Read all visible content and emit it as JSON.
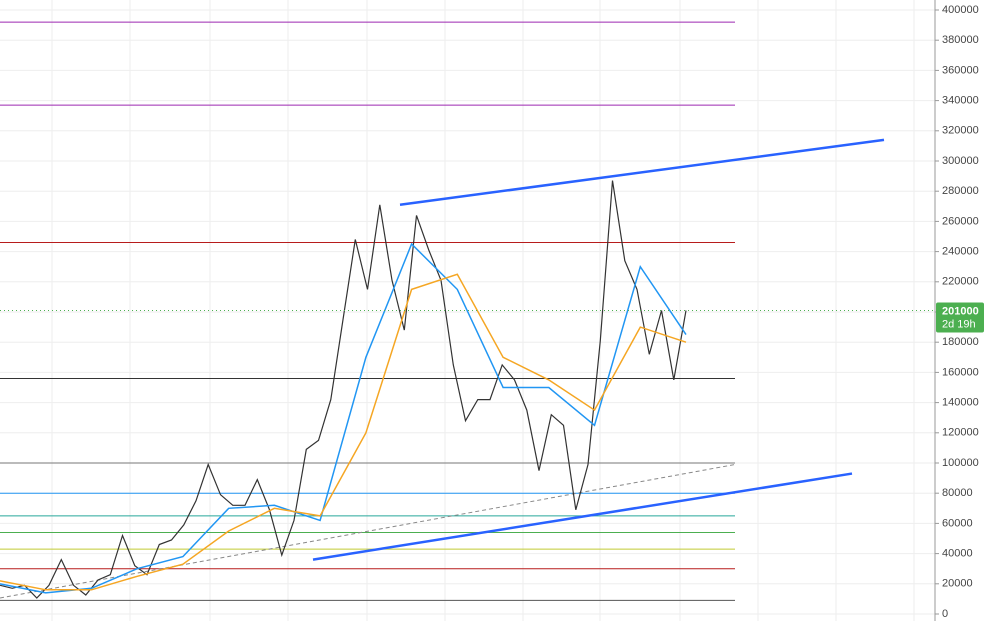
{
  "chart_data": {
    "type": "line",
    "ylim": [
      0,
      400000
    ],
    "yticks": [
      0,
      20000,
      40000,
      60000,
      80000,
      100000,
      120000,
      140000,
      160000,
      180000,
      200000,
      220000,
      240000,
      260000,
      280000,
      300000,
      320000,
      340000,
      360000,
      380000,
      400000
    ],
    "grid": true,
    "series": [
      {
        "name": "Price",
        "color": "#333333",
        "values": [
          19000,
          17000,
          19000,
          10600,
          19000,
          36000,
          19000,
          12600,
          22500,
          26000,
          52000,
          32000,
          26000,
          46000,
          49000,
          59000,
          75000,
          99000,
          79000,
          72000,
          72000,
          89000,
          69000,
          39000,
          62000,
          109000,
          115000,
          142000,
          195000,
          248000,
          215000,
          271000,
          221000,
          188000,
          264000,
          241000,
          221000,
          165000,
          128000,
          142000,
          142000,
          165000,
          155000,
          135000,
          95000,
          132000,
          125000,
          69000,
          99000,
          181000,
          287000,
          234000,
          215000,
          172000,
          201000,
          155000,
          201000
        ]
      },
      {
        "name": "MA fast",
        "color": "#2196f3",
        "values": [
          20000,
          14000,
          17000,
          30000,
          38000,
          70000,
          72000,
          62000,
          170000,
          245000,
          215000,
          150000,
          150000,
          125000,
          230000,
          185000
        ]
      },
      {
        "name": "MA slow",
        "color": "#f5a623",
        "values": [
          22000,
          16000,
          16000,
          25000,
          33000,
          55000,
          70000,
          65000,
          120000,
          215000,
          225000,
          170000,
          155000,
          135000,
          190000,
          180000
        ]
      }
    ],
    "levels": [
      {
        "value": 392000,
        "color": "#9c27b0"
      },
      {
        "value": 337000,
        "color": "#9c27b0"
      },
      {
        "value": 246000,
        "color": "#b71c1c"
      },
      {
        "value": 156000,
        "color": "#333333"
      },
      {
        "value": 100000,
        "color": "#777777"
      },
      {
        "value": 80000,
        "color": "#2196f3"
      },
      {
        "value": 65000,
        "color": "#26a69a"
      },
      {
        "value": 54000,
        "color": "#4caf50"
      },
      {
        "value": 43000,
        "color": "#c0ca33"
      },
      {
        "value": 30000,
        "color": "#b71c1c"
      },
      {
        "value": 9000,
        "color": "#555555"
      }
    ],
    "trend_lines": [
      {
        "values": [
          271000,
          314000
        ],
        "color": "#2962ff"
      },
      {
        "values": [
          36000,
          93000
        ],
        "color": "#2962ff"
      },
      {
        "values": [
          10600,
          99000
        ],
        "color": "#888888",
        "dashed": true
      }
    ],
    "last_price": 201000,
    "countdown": "2d 19h",
    "last_price_color": "#4caf50"
  }
}
